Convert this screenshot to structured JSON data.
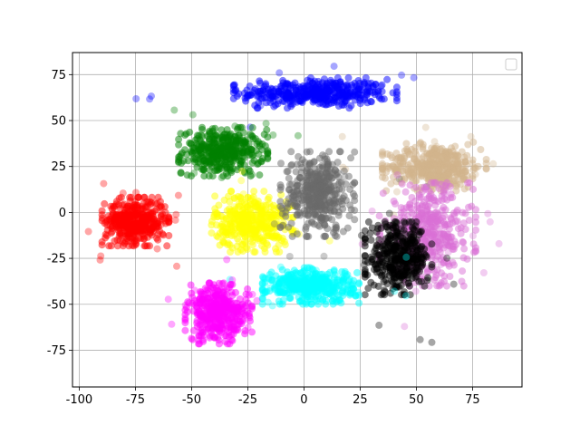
{
  "chart_data": {
    "type": "scatter",
    "title": "",
    "xlabel": "",
    "ylabel": "",
    "xlim": [
      -103,
      97
    ],
    "ylim": [
      -95,
      87
    ],
    "xticks": [
      -100,
      -75,
      -50,
      -25,
      0,
      25,
      50,
      75
    ],
    "yticks": [
      -75,
      -50,
      -25,
      0,
      25,
      50,
      75
    ],
    "grid": true,
    "legend": {
      "placement": "top-right",
      "entries": []
    },
    "point_alpha": 0.5,
    "clusters": [
      {
        "color": "#0000ff",
        "cx": 5,
        "cy": 65,
        "sx": 22,
        "sy": 5,
        "count": 420
      },
      {
        "color": "#008000",
        "cx": -36,
        "cy": 33,
        "sx": 12,
        "sy": 8,
        "count": 380
      },
      {
        "color": "#d2b48c",
        "cx": 58,
        "cy": 25,
        "sx": 14,
        "sy": 8,
        "count": 400
      },
      {
        "color": "#ff0000",
        "cx": -75,
        "cy": -5,
        "sx": 9,
        "sy": 8,
        "count": 420
      },
      {
        "color": "#ffff00",
        "cx": -23,
        "cy": -5,
        "sx": 11,
        "sy": 10,
        "count": 380
      },
      {
        "color": "#696969",
        "cx": 6,
        "cy": 10,
        "sx": 10,
        "sy": 14,
        "count": 400
      },
      {
        "color": "#da70d6",
        "cx": 55,
        "cy": -12,
        "sx": 13,
        "sy": 17,
        "count": 420
      },
      {
        "color": "#000000",
        "cx": 42,
        "cy": -25,
        "sx": 9,
        "sy": 12,
        "count": 380
      },
      {
        "color": "#00ffff",
        "cx": 3,
        "cy": -40,
        "sx": 13,
        "sy": 6,
        "count": 400
      },
      {
        "color": "#ff00ff",
        "cx": -38,
        "cy": -55,
        "sx": 9,
        "sy": 10,
        "count": 400
      }
    ]
  }
}
